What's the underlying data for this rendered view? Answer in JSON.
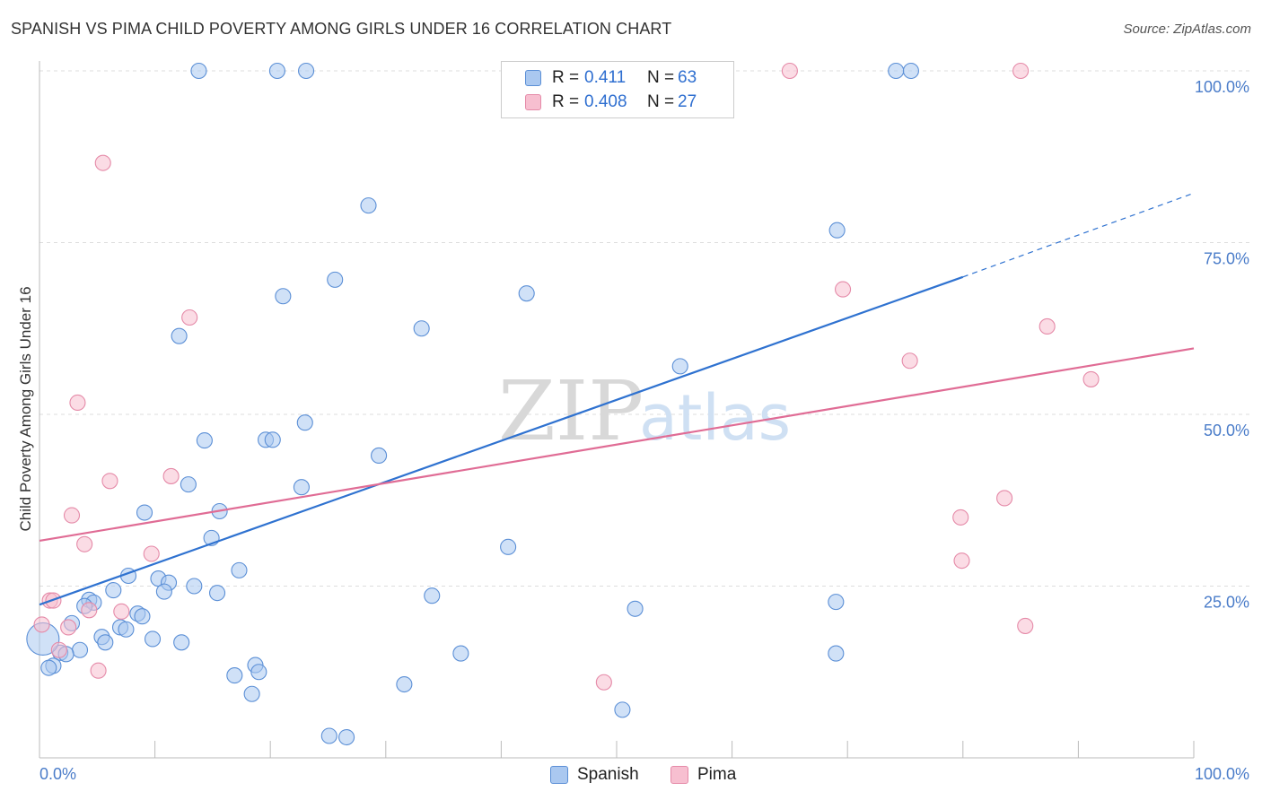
{
  "title": "SPANISH VS PIMA CHILD POVERTY AMONG GIRLS UNDER 16 CORRELATION CHART",
  "source": "Source: ZipAtlas.com",
  "watermark": {
    "zip": "ZIP",
    "atlas": "atlas"
  },
  "colors": {
    "spanish_fill": "#aac8f0",
    "spanish_stroke": "#5b8fd6",
    "spanish_line": "#2f72d0",
    "pima_fill": "#f7bfd0",
    "pima_stroke": "#e58aa8",
    "pima_line": "#e06c95",
    "tick_color": "#4a7cc9",
    "grid": "#dddddd"
  },
  "legend": {
    "spanish": {
      "r_label": "R =",
      "r_value": "0.411",
      "n_label": "N =",
      "n_value": "63"
    },
    "pima": {
      "r_label": "R =",
      "r_value": "0.408",
      "n_label": "N =",
      "n_value": "27"
    }
  },
  "bottom_legend": {
    "spanish": "Spanish",
    "pima": "Pima"
  },
  "chart_data": {
    "type": "scatter",
    "title": "SPANISH VS PIMA CHILD POVERTY AMONG GIRLS UNDER 16 CORRELATION CHART",
    "xlabel": "",
    "ylabel": "Child Poverty Among Girls Under 16",
    "xlim": [
      0,
      100
    ],
    "ylim": [
      0,
      100
    ],
    "x_tick_labels": [
      "0.0%",
      "100.0%"
    ],
    "y_tick_values": [
      25,
      50,
      75,
      100
    ],
    "y_tick_labels": [
      "25.0%",
      "50.0%",
      "75.0%",
      "100.0%"
    ],
    "grid": true,
    "series": [
      {
        "name": "Spanish",
        "points": [
          [
            13.8,
            100
          ],
          [
            20.6,
            100
          ],
          [
            23.1,
            100
          ],
          [
            74.2,
            100
          ],
          [
            75.5,
            100
          ],
          [
            28.5,
            80.4
          ],
          [
            69.1,
            76.8
          ],
          [
            25.6,
            69.6
          ],
          [
            21.1,
            67.2
          ],
          [
            42.2,
            67.6
          ],
          [
            33.1,
            62.5
          ],
          [
            12.1,
            61.4
          ],
          [
            55.5,
            57.0
          ],
          [
            23.0,
            48.8
          ],
          [
            14.3,
            46.2
          ],
          [
            19.6,
            46.3
          ],
          [
            20.2,
            46.3
          ],
          [
            29.4,
            44.0
          ],
          [
            12.9,
            39.8
          ],
          [
            22.7,
            39.4
          ],
          [
            9.1,
            35.7
          ],
          [
            15.6,
            35.9
          ],
          [
            14.9,
            32.0
          ],
          [
            40.6,
            30.7
          ],
          [
            17.3,
            27.3
          ],
          [
            7.7,
            26.5
          ],
          [
            10.3,
            26.1
          ],
          [
            11.2,
            25.5
          ],
          [
            13.4,
            25.0
          ],
          [
            6.4,
            24.4
          ],
          [
            10.8,
            24.2
          ],
          [
            15.4,
            24.0
          ],
          [
            34.0,
            23.6
          ],
          [
            4.3,
            23.0
          ],
          [
            4.7,
            22.6
          ],
          [
            3.9,
            22.1
          ],
          [
            51.6,
            21.7
          ],
          [
            69.0,
            22.7
          ],
          [
            8.5,
            21.0
          ],
          [
            8.9,
            20.6
          ],
          [
            2.8,
            19.6
          ],
          [
            7.0,
            19.0
          ],
          [
            7.5,
            18.7
          ],
          [
            5.4,
            17.6
          ],
          [
            9.8,
            17.3
          ],
          [
            12.3,
            16.8
          ],
          [
            5.7,
            16.8
          ],
          [
            3.5,
            15.7
          ],
          [
            1.8,
            15.3
          ],
          [
            2.3,
            15.1
          ],
          [
            0.3,
            17.3
          ],
          [
            69.0,
            15.2
          ],
          [
            36.5,
            15.2
          ],
          [
            1.2,
            13.4
          ],
          [
            0.8,
            13.1
          ],
          [
            18.7,
            13.5
          ],
          [
            19.0,
            12.5
          ],
          [
            16.9,
            12.0
          ],
          [
            31.6,
            10.7
          ],
          [
            18.4,
            9.3
          ],
          [
            50.5,
            7.0
          ],
          [
            25.1,
            3.2
          ],
          [
            26.6,
            3.0
          ]
        ]
      },
      {
        "name": "Pima",
        "points": [
          [
            65.0,
            100
          ],
          [
            85.0,
            100
          ],
          [
            5.5,
            86.6
          ],
          [
            69.6,
            68.2
          ],
          [
            13.0,
            64.1
          ],
          [
            87.3,
            62.8
          ],
          [
            75.4,
            57.8
          ],
          [
            91.1,
            55.1
          ],
          [
            3.3,
            51.7
          ],
          [
            11.4,
            41.0
          ],
          [
            6.1,
            40.3
          ],
          [
            83.6,
            37.8
          ],
          [
            2.8,
            35.3
          ],
          [
            79.8,
            35.0
          ],
          [
            3.9,
            31.1
          ],
          [
            9.7,
            29.7
          ],
          [
            79.9,
            28.7
          ],
          [
            0.9,
            22.9
          ],
          [
            1.2,
            22.9
          ],
          [
            4.3,
            21.5
          ],
          [
            7.1,
            21.3
          ],
          [
            85.4,
            19.2
          ],
          [
            0.2,
            19.4
          ],
          [
            2.5,
            19.0
          ],
          [
            1.7,
            15.7
          ],
          [
            5.1,
            12.7
          ],
          [
            48.9,
            11.0
          ]
        ]
      }
    ],
    "trend_lines": [
      {
        "name": "Spanish",
        "from": [
          0,
          22.3
        ],
        "to": [
          80,
          70.0
        ],
        "dashed_to": [
          100,
          82.2
        ]
      },
      {
        "name": "Pima",
        "from": [
          0,
          31.6
        ],
        "to": [
          100,
          59.6
        ]
      }
    ]
  }
}
